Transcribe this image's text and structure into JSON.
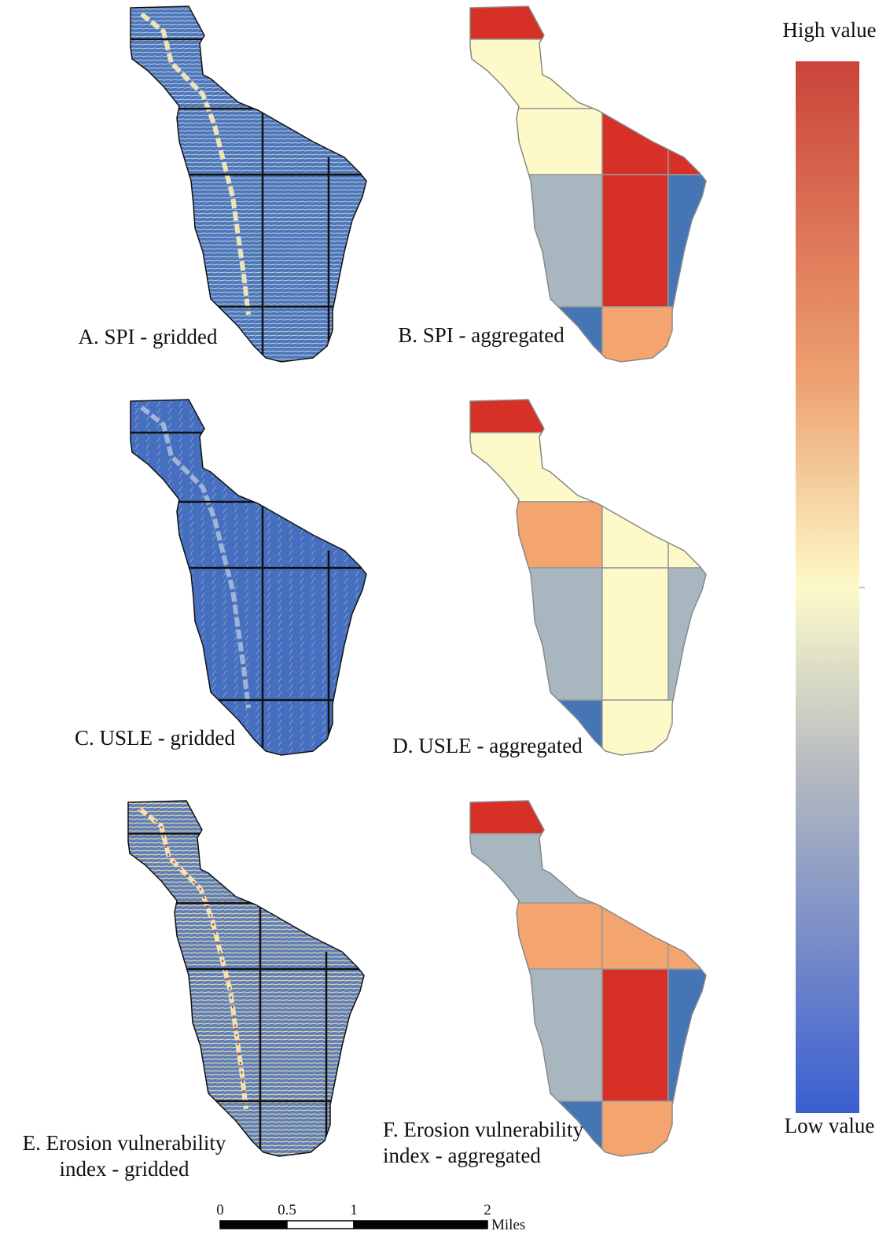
{
  "panels": [
    {
      "kind": "gridded",
      "label": [
        "A. SPI - gridded"
      ]
    },
    {
      "kind": "aggregated",
      "label": [
        "B. SPI - aggregated"
      ],
      "cell_colors": [
        "#d73027",
        "#fdf9c8",
        "#fdf9c8",
        "#d73027",
        "#d73027",
        "#a8b6bf",
        "#d73027",
        "#4575b4",
        "#4575b4",
        "#f4a46f"
      ]
    },
    {
      "kind": "gridded",
      "label": [
        "C. USLE - gridded"
      ]
    },
    {
      "kind": "aggregated",
      "label": [
        "D. USLE - aggregated"
      ],
      "cell_colors": [
        "#d73027",
        "#fdf9c8",
        "#f4a46f",
        "#fdf9c8",
        "#fdf9c8",
        "#a8b6bf",
        "#fdf9c8",
        "#a8b6bf",
        "#4575b4",
        "#fdf9c8"
      ]
    },
    {
      "kind": "gridded",
      "label": [
        "E. Erosion vulnerability",
        "index - gridded"
      ]
    },
    {
      "kind": "aggregated",
      "label": [
        "F. Erosion vulnerability",
        "index - aggregated"
      ],
      "cell_colors": [
        "#d73027",
        "#a8b6bf",
        "#f4a46f",
        "#f4a46f",
        "#f4a46f",
        "#a8b6bf",
        "#d73027",
        "#4575b4",
        "#4575b4",
        "#f4a46f"
      ]
    }
  ],
  "legend": {
    "high": "High value",
    "low": "Low value"
  },
  "scale_bar": {
    "ticks": [
      0,
      0.5,
      1,
      2
    ],
    "unit": "Miles"
  }
}
